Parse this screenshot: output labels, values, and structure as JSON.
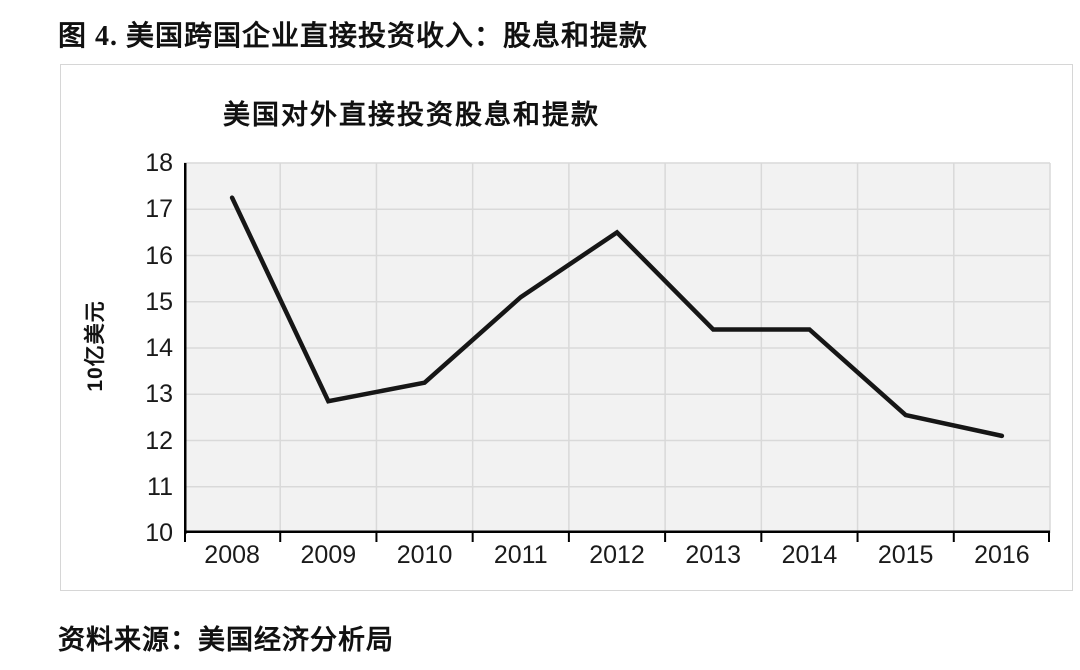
{
  "figure": {
    "caption": "图 4. 美国跨国企业直接投资收入：股息和提款",
    "source": "资料来源：美国经济分析局"
  },
  "chart_data": {
    "type": "line",
    "title": "美国对外直接投资股息和提款",
    "xlabel": "",
    "ylabel": "10亿美元",
    "categories": [
      "2008",
      "2009",
      "2010",
      "2011",
      "2012",
      "2013",
      "2014",
      "2015",
      "2016"
    ],
    "values": [
      17.25,
      12.85,
      13.25,
      15.1,
      16.5,
      14.4,
      14.4,
      12.55,
      12.1
    ],
    "ylim": [
      10,
      18
    ],
    "ytick_step": 1,
    "grid": true,
    "legend": "none",
    "colors": {
      "line": "#161616",
      "plot_background": "#f2f2f2",
      "gridline": "#d9d9d9",
      "axis": "#000000",
      "text": "#111111"
    }
  }
}
